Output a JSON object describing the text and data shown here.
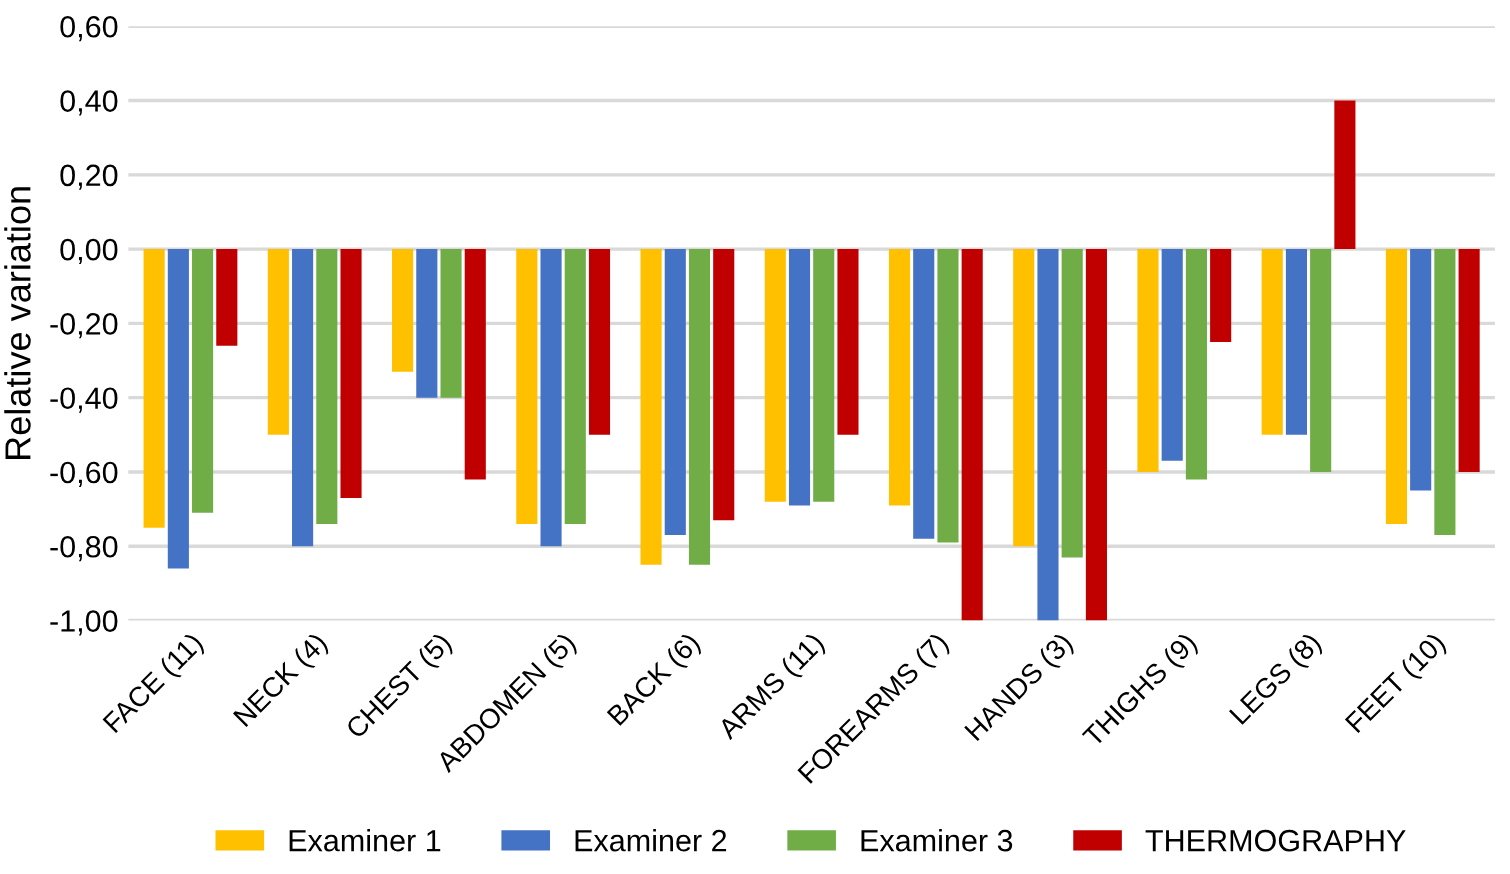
{
  "chart_data": {
    "type": "bar",
    "ylabel": "Relative variation",
    "categories": [
      "FACE (11)",
      "NECK (4)",
      "CHEST (5)",
      "ABDOMEN (5)",
      "BACK (6)",
      "ARMS (11)",
      "FOREARMS (7)",
      "HANDS (3)",
      "THIGHS (9)",
      "LEGS (8)",
      "FEET (10)"
    ],
    "series": [
      {
        "name": "Examiner 1",
        "color": "#ffc000",
        "values": [
          -0.75,
          -0.5,
          -0.33,
          -0.74,
          -0.85,
          -0.68,
          -0.69,
          -0.8,
          -0.6,
          -0.5,
          -0.74
        ]
      },
      {
        "name": "Examiner 2",
        "color": "#4472c4",
        "values": [
          -0.86,
          -0.8,
          -0.4,
          -0.8,
          -0.77,
          -0.69,
          -0.78,
          -1.0,
          -0.57,
          -0.5,
          -0.65
        ]
      },
      {
        "name": "Examiner 3",
        "color": "#70ad47",
        "values": [
          -0.71,
          -0.74,
          -0.4,
          -0.74,
          -0.85,
          -0.68,
          -0.79,
          -0.83,
          -0.62,
          -0.6,
          -0.77
        ]
      },
      {
        "name": "THERMOGRAPHY",
        "color": "#c00000",
        "values": [
          -0.26,
          -0.67,
          -0.62,
          -0.5,
          -0.73,
          -0.5,
          -1.0,
          -1.0,
          -0.25,
          0.4,
          -0.6
        ]
      }
    ],
    "ylim": [
      -1.0,
      0.6
    ],
    "yticks": [
      {
        "value": -1.0,
        "label": "-1,00"
      },
      {
        "value": -0.8,
        "label": "-0,80"
      },
      {
        "value": -0.6,
        "label": "-0,60"
      },
      {
        "value": -0.4,
        "label": "-0,40"
      },
      {
        "value": -0.2,
        "label": "-0,20"
      },
      {
        "value": 0.0,
        "label": "0,00"
      },
      {
        "value": 0.2,
        "label": "0,20"
      },
      {
        "value": 0.4,
        "label": "0,40"
      },
      {
        "value": 0.6,
        "label": "0,60"
      }
    ],
    "grid": "y",
    "legend": "bottom"
  }
}
